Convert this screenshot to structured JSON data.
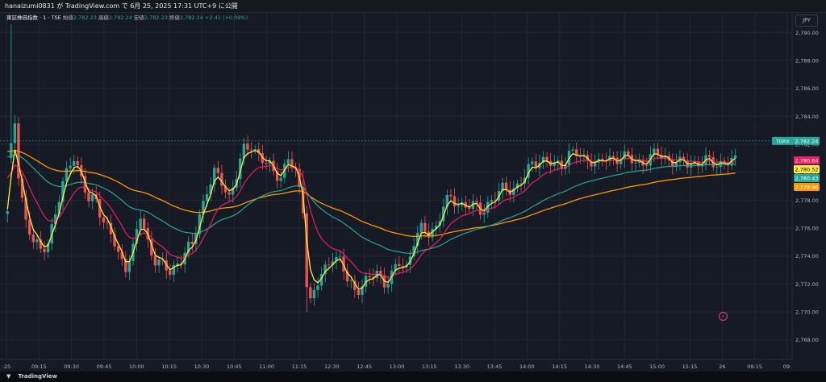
{
  "header": {
    "publisher": "hanaizumi0831 が TradingView.com で 6月 25, 2025 17:31 UTC+9 に公開"
  },
  "legend": {
    "symbol": "東証株価指数 · 1 · TSE",
    "open_label": "始値",
    "open": "2,782.23",
    "high_label": "高値",
    "high": "2,782.24",
    "low_label": "安値",
    "low": "2,782.23",
    "close_label": "終値",
    "close": "2,782.24",
    "change": "+2.41 (+0.09%)"
  },
  "currency_button": "JPY",
  "footer": {
    "brand": "TradingView"
  },
  "alert_icon": "flash-icon",
  "colors": {
    "up": "#26a69a",
    "down": "#ef5350",
    "ma_fast": "#ffeb3b",
    "ma_mid": "#e91e63",
    "ma_slow": "#26a69a",
    "ma_long": "#ff9800",
    "grid": "#232734"
  },
  "chart_data": {
    "type": "candlestick",
    "y_ticks": [
      "2,790.00",
      "2,788.00",
      "2,786.00",
      "2,784.00",
      "2,782.00",
      "2,780.00",
      "2,778.00",
      "2,776.00",
      "2,774.00",
      "2,772.00",
      "2,770.00",
      "2,768.00"
    ],
    "ylim": [
      2766.6,
      2791.4
    ],
    "x_ticks": [
      ":25",
      "09:15",
      "09:30",
      "09:45",
      "10:00",
      "10:15",
      "10:30",
      "10:45",
      "11:00",
      "11:15",
      "12:30",
      "12:45",
      "13:00",
      "13:15",
      "13:30",
      "13:45",
      "14:00",
      "14:15",
      "14:30",
      "14:45",
      "15:00",
      "15:15",
      "26",
      "09:15",
      "09:"
    ],
    "bars": 198,
    "price_label": {
      "name": "TOPIX",
      "value": "2,782.24",
      "color": "#26a69a"
    },
    "ma_labels": [
      {
        "value": "2,780.64",
        "color": "#e91e63"
      },
      {
        "value": "2,780.52",
        "color": "#ffeb3b"
      },
      {
        "value": "2,780.43",
        "color": "#26a69a"
      },
      {
        "value": "2,779.96",
        "color": "#ff9800"
      }
    ],
    "close_path": [
      [
        0,
        2777.0
      ],
      [
        1,
        2781.5
      ],
      [
        2,
        2783.5
      ],
      [
        3,
        2780.0
      ],
      [
        5,
        2776.5
      ],
      [
        7,
        2775.0
      ],
      [
        9,
        2774.3
      ],
      [
        11,
        2775.2
      ],
      [
        13,
        2777.0
      ],
      [
        15,
        2779.0
      ],
      [
        17,
        2780.8
      ],
      [
        18,
        2781.3
      ],
      [
        20,
        2779.5
      ],
      [
        22,
        2777.8
      ],
      [
        24,
        2778.2
      ],
      [
        26,
        2776.5
      ],
      [
        28,
        2775.5
      ],
      [
        30,
        2774.0
      ],
      [
        32,
        2773.4
      ],
      [
        34,
        2774.5
      ],
      [
        36,
        2776.8
      ],
      [
        38,
        2775.0
      ],
      [
        40,
        2773.8
      ],
      [
        42,
        2773.2
      ],
      [
        44,
        2772.8
      ],
      [
        46,
        2773.6
      ],
      [
        48,
        2774.2
      ],
      [
        50,
        2774.7
      ],
      [
        52,
        2777.0
      ],
      [
        54,
        2778.8
      ],
      [
        56,
        2779.8
      ],
      [
        58,
        2779.3
      ],
      [
        60,
        2778.3
      ],
      [
        62,
        2779.8
      ],
      [
        64,
        2781.5
      ],
      [
        66,
        2782.0
      ],
      [
        68,
        2781.3
      ],
      [
        70,
        2780.5
      ],
      [
        72,
        2780.0
      ],
      [
        74,
        2779.8
      ],
      [
        76,
        2781.0
      ],
      [
        78,
        2779.8
      ],
      [
        80,
        2777.5
      ],
      [
        81,
        2772.2
      ],
      [
        82,
        2770.8
      ],
      [
        84,
        2772.0
      ],
      [
        86,
        2773.0
      ],
      [
        88,
        2774.2
      ],
      [
        90,
        2773.6
      ],
      [
        92,
        2772.2
      ],
      [
        94,
        2771.6
      ],
      [
        96,
        2772.0
      ],
      [
        98,
        2772.3
      ],
      [
        100,
        2772.8
      ],
      [
        102,
        2772.2
      ],
      [
        104,
        2772.6
      ],
      [
        106,
        2773.4
      ],
      [
        108,
        2773.2
      ],
      [
        110,
        2775.2
      ],
      [
        112,
        2775.8
      ],
      [
        114,
        2775.6
      ],
      [
        116,
        2776.2
      ],
      [
        118,
        2777.6
      ],
      [
        120,
        2778.0
      ],
      [
        122,
        2777.8
      ],
      [
        124,
        2777.7
      ],
      [
        126,
        2777.5
      ],
      [
        128,
        2777.2
      ],
      [
        130,
        2777.8
      ],
      [
        132,
        2778.2
      ],
      [
        134,
        2778.7
      ],
      [
        136,
        2778.9
      ],
      [
        138,
        2779.0
      ],
      [
        140,
        2779.6
      ],
      [
        142,
        2780.6
      ],
      [
        144,
        2781.0
      ],
      [
        146,
        2780.7
      ],
      [
        148,
        2780.4
      ],
      [
        150,
        2780.6
      ],
      [
        152,
        2781.4
      ],
      [
        154,
        2781.2
      ],
      [
        156,
        2780.9
      ],
      [
        158,
        2781.0
      ],
      [
        160,
        2780.5
      ],
      [
        162,
        2780.9
      ],
      [
        164,
        2781.0
      ],
      [
        166,
        2781.2
      ],
      [
        168,
        2780.9
      ],
      [
        170,
        2780.7
      ],
      [
        172,
        2780.8
      ],
      [
        174,
        2781.0
      ],
      [
        176,
        2781.3
      ],
      [
        178,
        2781.1
      ],
      [
        180,
        2780.8
      ],
      [
        182,
        2780.5
      ],
      [
        183,
        2780.7
      ]
    ]
  }
}
